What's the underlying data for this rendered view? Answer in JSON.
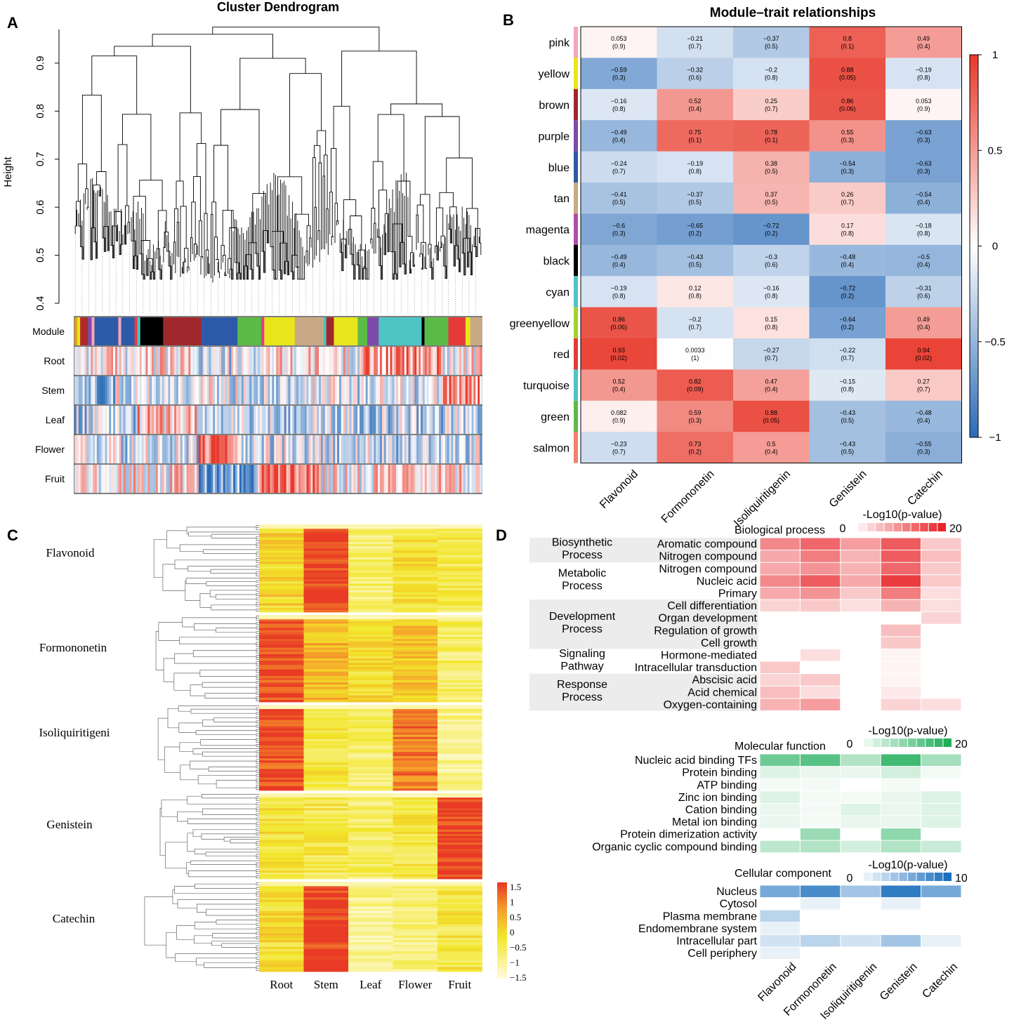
{
  "panel_letters": [
    "A",
    "B",
    "C",
    "D"
  ],
  "colors": {
    "red": "#e8382a",
    "white": "#ffffff",
    "blue": "#2b6cb8",
    "go_green": "#1fae5a",
    "go_blue": "#1a6fbd",
    "go_red": "#e8262a"
  },
  "chart_data": [
    {
      "id": "A",
      "type": "dendrogram",
      "title": "Cluster Dendrogram",
      "ylabel": "Height",
      "yticks": [
        0.4,
        0.5,
        0.6,
        0.7,
        0.8,
        0.9
      ],
      "ylim": [
        0.4,
        0.97
      ],
      "color_bars": [
        "Module",
        "Root",
        "Stem",
        "Leaf",
        "Flower",
        "Fruit"
      ],
      "module_color_sequence": [
        "#dca01b",
        "#e8e61a",
        "#b02a2a",
        "#7e4aa8",
        "#f4a6b8",
        "#2d5aa8",
        "#f4a6b8",
        "#2d5aa8",
        "#e63a3a",
        "#4ec4c4",
        "#000000",
        "#a0282d",
        "#2d5aa8",
        "#5bbb47",
        "#e8368f",
        "#e8e61a",
        "#c9a985",
        "#4ec4c4",
        "#a0282d",
        "#e8e61a",
        "#5bbb47",
        "#7e4aa8",
        "#4ec4c4",
        "#000000",
        "#5bbb47",
        "#e63a3a",
        "#e8e61a",
        "#c9a985"
      ],
      "module_color_widths": [
        3,
        3,
        8,
        4,
        3,
        25,
        3,
        14,
        3,
        3,
        24,
        40,
        38,
        25,
        3,
        32,
        30,
        3,
        8,
        25,
        10,
        12,
        45,
        3,
        25,
        18,
        5,
        12
      ]
    },
    {
      "id": "B",
      "type": "heatmap",
      "title": "Module–trait relationships",
      "rows": [
        "pink",
        "yellow",
        "brown",
        "purple",
        "blue",
        "tan",
        "magenta",
        "black",
        "cyan",
        "greenyellow",
        "red",
        "turquoise",
        "green",
        "salmon"
      ],
      "row_swatches": [
        "#f4a6b8",
        "#e8e61a",
        "#a0282d",
        "#7e4aa8",
        "#2d5aa8",
        "#c9a985",
        "#b54aa8",
        "#000000",
        "#4ec4c4",
        "#a6d12e",
        "#e63a3a",
        "#4ec4c4",
        "#5bbb47",
        "#f08070"
      ],
      "columns": [
        "Flavonoid",
        "Formononetin",
        "Isoliquiritigenin",
        "Genistein",
        "Catechin"
      ],
      "values": [
        [
          0.053,
          -0.21,
          -0.37,
          0.8,
          0.49
        ],
        [
          -0.59,
          -0.32,
          -0.2,
          0.88,
          -0.19
        ],
        [
          -0.16,
          0.52,
          0.25,
          0.86,
          0.053
        ],
        [
          -0.49,
          0.75,
          0.78,
          0.55,
          -0.63
        ],
        [
          -0.24,
          -0.19,
          0.38,
          -0.54,
          -0.63
        ],
        [
          -0.41,
          -0.37,
          0.37,
          0.26,
          -0.54
        ],
        [
          -0.6,
          -0.65,
          -0.72,
          0.17,
          -0.18
        ],
        [
          -0.49,
          -0.43,
          -0.3,
          -0.48,
          -0.5
        ],
        [
          -0.19,
          0.12,
          -0.16,
          -0.72,
          -0.31
        ],
        [
          0.86,
          -0.2,
          0.15,
          -0.64,
          0.49
        ],
        [
          0.93,
          0.0033,
          -0.27,
          -0.22,
          0.94
        ],
        [
          0.52,
          0.82,
          0.47,
          -0.15,
          0.27
        ],
        [
          0.082,
          0.59,
          0.88,
          -0.43,
          -0.48
        ],
        [
          -0.23,
          0.73,
          0.5,
          -0.43,
          -0.55
        ]
      ],
      "value_labels": [
        [
          "0.053",
          "−0.21",
          "−0.37",
          "0.8",
          "0.49"
        ],
        [
          "−0.59",
          "−0.32",
          "−0.2",
          "0.88",
          "−0.19"
        ],
        [
          "−0.16",
          "0.52",
          "0.25",
          "0.86",
          "0.053"
        ],
        [
          "−0.49",
          "0.75",
          "0.78",
          "0.55",
          "−0.63"
        ],
        [
          "−0.24",
          "−0.19",
          "0.38",
          "−0.54",
          "−0.63"
        ],
        [
          "−0.41",
          "−0.37",
          "0.37",
          "0.26",
          "−0.54"
        ],
        [
          "−0.6",
          "−0.65",
          "−0.72",
          "0.17",
          "−0.18"
        ],
        [
          "−0.49",
          "−0.43",
          "−0.3",
          "−0.48",
          "−0.5"
        ],
        [
          "−0.19",
          "0.12",
          "−0.16",
          "−0.72",
          "−0.31"
        ],
        [
          "0.86",
          "−0.2",
          "0.15",
          "−0.64",
          "0.49"
        ],
        [
          "0.93",
          "0.0033",
          "−0.27",
          "−0.22",
          "0.94"
        ],
        [
          "0.52",
          "0.82",
          "0.47",
          "−0.15",
          "0.27"
        ],
        [
          "0.082",
          "0.59",
          "0.88",
          "−0.43",
          "−0.48"
        ],
        [
          "−0.23",
          "0.73",
          "0.5",
          "−0.43",
          "−0.55"
        ]
      ],
      "pvalues": [
        [
          "(0.9)",
          "(0.7)",
          "(0.5)",
          "(0.1)",
          "(0.4)"
        ],
        [
          "(0.3)",
          "(0.6)",
          "(0.8)",
          "(0.05)",
          "(0.8)"
        ],
        [
          "(0.8)",
          "(0.4)",
          "(0.7)",
          "(0.06)",
          "(0.9)"
        ],
        [
          "(0.4)",
          "(0.1)",
          "(0.1)",
          "(0.3)",
          "(0.3)"
        ],
        [
          "(0.7)",
          "(0.8)",
          "(0.5)",
          "(0.3)",
          "(0.3)"
        ],
        [
          "(0.5)",
          "(0.5)",
          "(0.5)",
          "(0.7)",
          "(0.4)"
        ],
        [
          "(0.3)",
          "(0.2)",
          "(0.2)",
          "(0.8)",
          "(0.8)"
        ],
        [
          "(0.4)",
          "(0.5)",
          "(0.6)",
          "(0.4)",
          "(0.4)"
        ],
        [
          "(0.8)",
          "(0.8)",
          "(0.8)",
          "(0.2)",
          "(0.6)"
        ],
        [
          "(0.06)",
          "(0.7)",
          "(0.8)",
          "(0.2)",
          "(0.4)"
        ],
        [
          "(0.02)",
          "(1)",
          "(0.7)",
          "(0.7)",
          "(0.02)"
        ],
        [
          "(0.4)",
          "(0.09)",
          "(0.4)",
          "(0.8)",
          "(0.7)"
        ],
        [
          "(0.9)",
          "(0.3)",
          "(0.05)",
          "(0.5)",
          "(0.4)"
        ],
        [
          "(0.7)",
          "(0.2)",
          "(0.4)",
          "(0.5)",
          "(0.3)"
        ]
      ],
      "legend_ticks": [
        "1",
        "0.5",
        "0",
        "−0.5",
        "−1"
      ],
      "legend_range": [
        -1,
        1
      ]
    },
    {
      "id": "C",
      "type": "heatmap",
      "groups": [
        "Flavonoid",
        "Formononetin",
        "Isoliquiritigeni",
        "Genistein",
        "Catechin"
      ],
      "columns": [
        "Root",
        "Stem",
        "Leaf",
        "Flower",
        "Fruit"
      ],
      "group_profiles": [
        [
          0.0,
          1.5,
          -0.6,
          -0.2,
          -0.4
        ],
        [
          1.4,
          0.4,
          -0.1,
          0.2,
          -0.6
        ],
        [
          1.3,
          -0.3,
          -0.6,
          1.0,
          -0.9
        ],
        [
          -0.2,
          -0.4,
          -0.6,
          -0.3,
          1.5
        ],
        [
          -0.1,
          1.5,
          -0.9,
          -0.8,
          -0.3
        ]
      ],
      "legend_ticks": [
        "1.5",
        "1",
        "0.5",
        "0",
        "−0.5",
        "−1",
        "−1.5"
      ],
      "legend_range": [
        -1.5,
        1.5
      ]
    },
    {
      "id": "D",
      "type": "heatmap",
      "columns": [
        "Flavonoid",
        "Formononetin",
        "Isoliquiritigenin",
        "Genistein",
        "Catechin"
      ],
      "sections": [
        {
          "name": "Biological process",
          "legend_title": "-Log10(p-value)",
          "legend_min": "0",
          "legend_max": "20",
          "color": "#e8262a",
          "max": 20,
          "categories": [
            {
              "label": "Biosynthetic\nProcess",
              "rows": 2,
              "shaded": true
            },
            {
              "label": "Metabolic\nProcess",
              "rows": 3,
              "shaded": false
            },
            {
              "label": "Development\nProcess",
              "rows": 4,
              "shaded": true
            },
            {
              "label": "Signaling\nPathway",
              "rows": 2,
              "shaded": false
            },
            {
              "label": "Response\nProcess",
              "rows": 3,
              "shaded": true
            }
          ],
          "rows": [
            "Aromatic compound",
            "Nitrogen compound",
            "Nitrogen compound",
            "Nucleic acid",
            "Primary",
            "Cell differentiation",
            "Organ development",
            "Regulation of growth",
            "Cell growth",
            "Hormone-mediated",
            "Intracellular transduction",
            "Abscisic acid",
            "Acid chemical",
            "Oxygen-containing"
          ],
          "values": [
            [
              11,
              14,
              9,
              15,
              5
            ],
            [
              8,
              12,
              7,
              15,
              6
            ],
            [
              8,
              10,
              7,
              14,
              5
            ],
            [
              11,
              15,
              8,
              18,
              5
            ],
            [
              8,
              10,
              5,
              12,
              3
            ],
            [
              4,
              5,
              3,
              7,
              3
            ],
            [
              0,
              0,
              0,
              0,
              4
            ],
            [
              0,
              0,
              0,
              6,
              0
            ],
            [
              0,
              0,
              0,
              5,
              0
            ],
            [
              0,
              3,
              0,
              1,
              0
            ],
            [
              5,
              0,
              0,
              1,
              0
            ],
            [
              4,
              5,
              0,
              1,
              0
            ],
            [
              6,
              3,
              0,
              2,
              0
            ],
            [
              7,
              9,
              0,
              4,
              3
            ]
          ]
        },
        {
          "name": "Molecular function",
          "legend_title": "-Log10(p-value)",
          "legend_min": "0",
          "legend_max": "20",
          "color": "#1fae5a",
          "max": 20,
          "rows": [
            "Nucleic acid binding TFs",
            "Protein binding",
            "ATP binding",
            "Zinc ion binding",
            "Cation binding",
            "Metal ion binding",
            "Protein dimerization activity",
            "Organic cyclic compound binding"
          ],
          "values": [
            [
              13,
              15,
              7,
              17,
              8
            ],
            [
              3,
              2,
              2,
              4,
              1
            ],
            [
              1,
              1,
              0,
              1,
              0
            ],
            [
              3,
              1,
              1,
              2,
              3
            ],
            [
              2,
              1,
              3,
              2,
              3
            ],
            [
              2,
              1,
              2,
              2,
              3
            ],
            [
              0,
              9,
              0,
              10,
              0
            ],
            [
              6,
              7,
              4,
              7,
              5
            ]
          ]
        },
        {
          "name": "Cellular component",
          "legend_title": "-Log10(p-value)",
          "legend_min": "0",
          "legend_max": "10",
          "color": "#1a6fbd",
          "max": 10,
          "rows": [
            "Nucleus",
            "Cytosol",
            "Plasma membrane",
            "Endomembrane system",
            "Intracellular part",
            "Cell periphery"
          ],
          "values": [
            [
              6,
              8,
              4,
              9,
              6
            ],
            [
              0,
              1,
              0,
              1,
              0
            ],
            [
              3,
              0,
              0,
              0,
              0
            ],
            [
              1,
              0,
              0,
              0,
              0
            ],
            [
              2,
              3,
              2,
              4,
              1
            ],
            [
              1,
              0,
              0,
              0,
              0
            ]
          ]
        }
      ]
    }
  ]
}
